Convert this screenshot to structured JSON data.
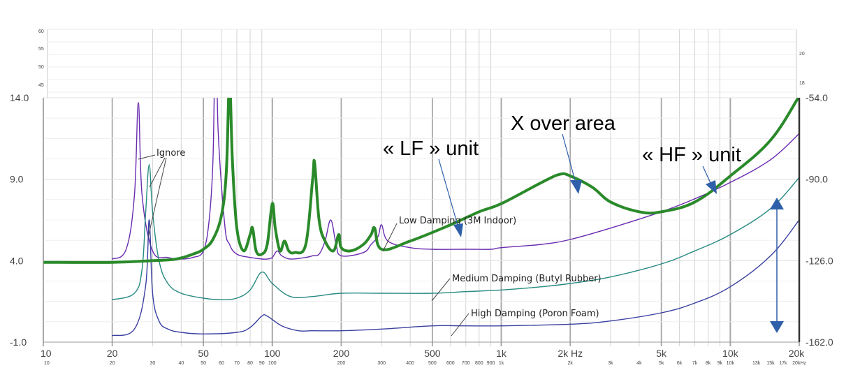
{
  "chart_data": {
    "type": "line",
    "xscale": "log",
    "xlim": [
      10,
      20000
    ],
    "ylim_left": [
      -1.0,
      14.0
    ],
    "ylim_right": [
      -162.0,
      -54.0
    ],
    "grid": true,
    "x_ticks_major": [
      "10",
      "20",
      "50",
      "100",
      "200",
      "500",
      "1k",
      "2k Hz",
      "5k",
      "10k",
      "20k"
    ],
    "x_ticks_major_values": [
      10,
      20,
      50,
      100,
      200,
      500,
      1000,
      2000,
      5000,
      10000,
      20000
    ],
    "x_ticks_minor": [
      "10",
      "20",
      "30",
      "40",
      "50",
      "60",
      "70",
      "80",
      "90",
      "100",
      "200",
      "300",
      "400",
      "500",
      "600",
      "700",
      "800",
      "900",
      "1k",
      "2k",
      "3k",
      "4k",
      "5k",
      "6k",
      "7k",
      "8k",
      "9k",
      "10k",
      "13k",
      "15k",
      "17k",
      "20kHz"
    ],
    "x_ticks_minor_values": [
      10,
      20,
      30,
      40,
      50,
      60,
      70,
      80,
      90,
      100,
      200,
      300,
      400,
      500,
      600,
      700,
      800,
      900,
      1000,
      2000,
      3000,
      4000,
      5000,
      6000,
      7000,
      8000,
      9000,
      10000,
      13000,
      15000,
      17000,
      20000
    ],
    "y_ticks_left": [
      "14.0",
      "9.0",
      "4.0",
      "-1.0"
    ],
    "y_ticks_left_values": [
      14.0,
      9.0,
      4.0,
      -1.0
    ],
    "y_ticks_right": [
      "-54.0",
      "-90.0",
      "-126.0",
      "-162.0"
    ],
    "y_ticks_right_values": [
      -54.0,
      -90.0,
      -126.0,
      -162.0
    ],
    "inset_left_ticks": [
      "60",
      "55",
      "50",
      "45"
    ],
    "inset_right_ticks": [
      "20",
      "18"
    ],
    "annotations": {
      "lf": "« LF » unit",
      "xover": "X over area",
      "hf": "« HF » unit",
      "ignore": "Ignore",
      "low": "Low Damping (3M Indoor)",
      "medium": "Medium Damping (Butyl Rubber)",
      "high": "High Damping (Poron Foam)"
    },
    "series": [
      {
        "name": "Low Damping (3M Indoor)",
        "color": "#6a2bb0",
        "width": 1.4,
        "x": [
          20,
          23,
          25,
          26,
          27,
          30,
          35,
          40,
          45,
          50,
          53,
          55,
          56,
          57,
          58,
          62,
          65,
          70,
          80,
          90,
          95,
          100,
          105,
          110,
          120,
          140,
          150,
          160,
          170,
          180,
          190,
          200,
          250,
          270,
          290,
          300,
          320,
          400,
          500,
          700,
          900,
          1000,
          1500,
          2000,
          3000,
          5000,
          7000,
          10000,
          15000,
          20000
        ],
        "y": [
          4.1,
          4.7,
          8.0,
          13.7,
          8.0,
          4.6,
          4.2,
          4.1,
          4.2,
          4.6,
          6.5,
          10.0,
          15.5,
          18.0,
          12.0,
          6.2,
          5.0,
          4.4,
          4.2,
          4.1,
          4.1,
          4.2,
          4.6,
          4.3,
          4.1,
          4.2,
          4.3,
          4.4,
          5.2,
          6.5,
          5.0,
          4.3,
          4.5,
          5.0,
          5.5,
          6.2,
          5.2,
          4.8,
          4.7,
          4.7,
          4.7,
          4.8,
          5.0,
          5.3,
          6.0,
          7.0,
          7.8,
          8.8,
          10.2,
          11.8
        ]
      },
      {
        "name": "Medium Damping (Butyl Rubber)",
        "color": "#268a80",
        "width": 1.4,
        "x": [
          20,
          25,
          27,
          28,
          29,
          30,
          32,
          35,
          40,
          50,
          60,
          70,
          80,
          90,
          100,
          120,
          150,
          200,
          300,
          500,
          700,
          1000,
          1500,
          2000,
          3000,
          5000,
          7000,
          10000,
          15000,
          20000
        ],
        "y": [
          1.6,
          2.0,
          3.5,
          7.0,
          9.9,
          7.0,
          4.0,
          2.6,
          2.0,
          1.7,
          1.6,
          1.7,
          2.2,
          3.3,
          2.6,
          1.8,
          1.8,
          2.0,
          2.0,
          2.0,
          2.1,
          2.2,
          2.4,
          2.6,
          3.0,
          3.8,
          4.6,
          5.6,
          7.2,
          9.1
        ]
      },
      {
        "name": "High Damping (Poron Foam)",
        "color": "#3a3fa0",
        "width": 1.4,
        "x": [
          20,
          25,
          28,
          29,
          30,
          32,
          35,
          40,
          50,
          70,
          80,
          90,
          95,
          110,
          130,
          150,
          200,
          300,
          500,
          700,
          1000,
          2000,
          3000,
          5000,
          7000,
          10000,
          15000,
          20000
        ],
        "y": [
          -0.6,
          -0.2,
          2.5,
          6.5,
          2.0,
          0.3,
          -0.2,
          -0.4,
          -0.5,
          -0.4,
          -0.1,
          0.6,
          0.6,
          0.0,
          -0.3,
          -0.3,
          -0.3,
          -0.2,
          0.0,
          0.0,
          0.0,
          0.1,
          0.3,
          0.8,
          1.4,
          2.4,
          4.3,
          6.5
        ]
      },
      {
        "name": "",
        "color": "#2a8a2a",
        "width": 4,
        "x": [
          10,
          20,
          30,
          38,
          45,
          50,
          55,
          60,
          63,
          65,
          67,
          70,
          75,
          80,
          82,
          85,
          90,
          95,
          100,
          103,
          108,
          113,
          118,
          125,
          140,
          150,
          153,
          160,
          170,
          185,
          195,
          200,
          220,
          250,
          270,
          280,
          300,
          400,
          600,
          800,
          1000,
          1500,
          1800,
          2000,
          2500,
          3000,
          4000,
          5000,
          7000,
          10000,
          15000,
          20000
        ],
        "y": [
          3.9,
          3.9,
          4.0,
          4.1,
          4.4,
          4.7,
          5.3,
          6.8,
          9.5,
          15.0,
          10.0,
          6.0,
          4.6,
          5.6,
          6.0,
          4.6,
          4.4,
          5.0,
          7.5,
          6.0,
          4.6,
          5.2,
          4.6,
          4.5,
          5.0,
          9.0,
          10.0,
          6.5,
          5.2,
          4.6,
          5.6,
          4.8,
          4.6,
          5.0,
          5.6,
          6.0,
          4.7,
          5.2,
          6.2,
          7.0,
          7.5,
          8.8,
          9.3,
          9.2,
          8.5,
          7.6,
          7.0,
          7.0,
          7.6,
          9.2,
          11.4,
          14.1
        ]
      }
    ]
  },
  "colors": {
    "arrow": "#2e5fa8",
    "grid_major": "#a8a8a8",
    "grid_minor": "#d4d4d4",
    "frame": "#c8c8c8"
  }
}
